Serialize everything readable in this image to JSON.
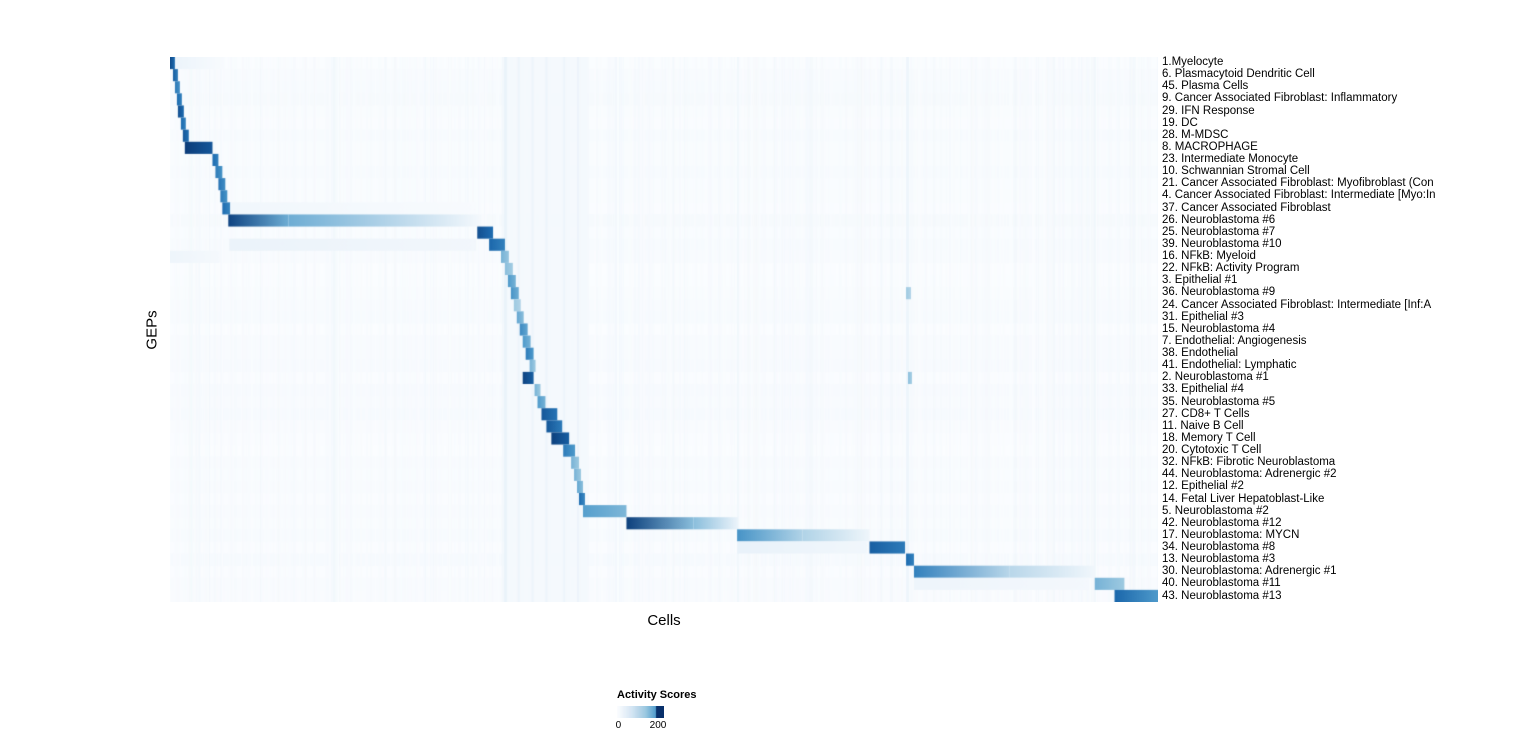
{
  "chart_data": {
    "type": "heatmap",
    "title": "",
    "xlabel": "Cells",
    "ylabel": "GEPs",
    "legend": {
      "title": "Activity Scores",
      "ticks": [
        "0",
        "200"
      ],
      "value_range": [
        0,
        200
      ]
    },
    "colormap": {
      "name": "Blues",
      "stops": [
        [
          0,
          "#fbfdff"
        ],
        [
          0.25,
          "#d6e6f4"
        ],
        [
          0.5,
          "#9ecae1"
        ],
        [
          0.7,
          "#4e9acb"
        ],
        [
          0.85,
          "#1c6bb0"
        ],
        [
          1,
          "#08306b"
        ]
      ]
    },
    "rows": [
      {
        "label": "1.Myelocyte",
        "segments": [
          [
            0.0,
            0.005,
            0.93,
            0.85
          ],
          [
            0.005,
            0.055,
            0.1,
            0.02
          ]
        ]
      },
      {
        "label": "6. Plasmacytoid Dendritic Cell",
        "segments": [
          [
            0.003,
            0.008,
            0.88,
            0.8
          ]
        ]
      },
      {
        "label": "45. Plasma Cells",
        "segments": [
          [
            0.005,
            0.01,
            0.8,
            0.74
          ]
        ]
      },
      {
        "label": "9. Cancer Associated Fibroblast: Inflammatory",
        "segments": [
          [
            0.007,
            0.012,
            0.85,
            0.78
          ]
        ]
      },
      {
        "label": "29. IFN Response",
        "segments": [
          [
            0.008,
            0.014,
            0.92,
            0.85
          ]
        ]
      },
      {
        "label": "19. DC",
        "segments": [
          [
            0.011,
            0.016,
            0.85,
            0.78
          ]
        ]
      },
      {
        "label": "28. M-MDSC",
        "segments": [
          [
            0.013,
            0.019,
            0.9,
            0.84
          ]
        ]
      },
      {
        "label": "8. MACROPHAGE",
        "segments": [
          [
            0.015,
            0.043,
            0.97,
            0.9
          ]
        ]
      },
      {
        "label": "23. Intermediate Monocyte",
        "segments": [
          [
            0.043,
            0.049,
            0.85,
            0.78
          ]
        ]
      },
      {
        "label": "10. Schwannian Stromal Cell",
        "segments": [
          [
            0.046,
            0.053,
            0.8,
            0.72
          ]
        ]
      },
      {
        "label": "21. Cancer Associated Fibroblast: Myofibroblast (Con",
        "segments": [
          [
            0.049,
            0.056,
            0.82,
            0.74
          ]
        ]
      },
      {
        "label": "4. Cancer Associated Fibroblast: Intermediate [Myo:In",
        "segments": [
          [
            0.051,
            0.058,
            0.8,
            0.72
          ]
        ]
      },
      {
        "label": "37. Cancer Associated Fibroblast",
        "segments": [
          [
            0.053,
            0.061,
            0.85,
            0.76
          ],
          [
            0.061,
            0.31,
            0.07,
            0.02
          ]
        ]
      },
      {
        "label": "26. Neuroblastoma #6",
        "segments": [
          [
            0.059,
            0.12,
            0.95,
            0.62
          ],
          [
            0.12,
            0.315,
            0.62,
            0.04
          ]
        ]
      },
      {
        "label": "25. Neuroblastoma #7",
        "segments": [
          [
            0.311,
            0.327,
            0.92,
            0.84
          ]
        ]
      },
      {
        "label": "39. Neuroblastoma #10",
        "segments": [
          [
            0.06,
            0.31,
            0.11,
            0.06
          ],
          [
            0.323,
            0.339,
            0.86,
            0.78
          ]
        ]
      },
      {
        "label": "16. NFkB: Myeloid",
        "segments": [
          [
            0.0,
            0.05,
            0.09,
            0.04
          ],
          [
            0.335,
            0.343,
            0.6,
            0.52
          ]
        ]
      },
      {
        "label": "22. NFkB: Activity Program",
        "segments": [
          [
            0.339,
            0.347,
            0.55,
            0.48
          ]
        ]
      },
      {
        "label": "3. Epithelial #1",
        "segments": [
          [
            0.342,
            0.35,
            0.7,
            0.6
          ]
        ]
      },
      {
        "label": "36. Neuroblastoma #9",
        "segments": [
          [
            0.345,
            0.353,
            0.72,
            0.62
          ],
          [
            0.745,
            0.75,
            0.5,
            0.4
          ]
        ]
      },
      {
        "label": "24. Cancer Associated Fibroblast: Intermediate [Inf:A",
        "segments": [
          [
            0.348,
            0.355,
            0.5,
            0.42
          ]
        ]
      },
      {
        "label": "31. Epithelial #3",
        "segments": [
          [
            0.351,
            0.358,
            0.65,
            0.55
          ]
        ]
      },
      {
        "label": "15. Neuroblastoma #4",
        "segments": [
          [
            0.354,
            0.362,
            0.75,
            0.65
          ]
        ]
      },
      {
        "label": "7. Endothelial: Angiogenesis",
        "segments": [
          [
            0.357,
            0.365,
            0.7,
            0.6
          ]
        ]
      },
      {
        "label": "38. Endothelial",
        "segments": [
          [
            0.36,
            0.368,
            0.8,
            0.7
          ]
        ]
      },
      {
        "label": "41. Endothelial: Lymphatic",
        "segments": [
          [
            0.364,
            0.37,
            0.6,
            0.5
          ]
        ]
      },
      {
        "label": "2. Neuroblastoma #1",
        "segments": [
          [
            0.357,
            0.368,
            0.95,
            0.88
          ],
          [
            0.747,
            0.751,
            0.55,
            0.45
          ]
        ]
      },
      {
        "label": "33. Epithelial #4",
        "segments": [
          [
            0.369,
            0.375,
            0.6,
            0.5
          ]
        ]
      },
      {
        "label": "35. Neuroblastoma #5",
        "segments": [
          [
            0.372,
            0.38,
            0.7,
            0.6
          ]
        ]
      },
      {
        "label": "27. CD8+ T Cells",
        "segments": [
          [
            0.376,
            0.392,
            0.9,
            0.82
          ]
        ]
      },
      {
        "label": "11. Naive B Cell",
        "segments": [
          [
            0.381,
            0.397,
            0.9,
            0.8
          ]
        ]
      },
      {
        "label": "18. Memory T Cell",
        "segments": [
          [
            0.386,
            0.404,
            0.96,
            0.88
          ]
        ]
      },
      {
        "label": "20. Cytotoxic T Cell",
        "segments": [
          [
            0.398,
            0.41,
            0.8,
            0.7
          ]
        ]
      },
      {
        "label": "32. NFkB: Fibrotic Neuroblastoma",
        "segments": [
          [
            0.406,
            0.414,
            0.6,
            0.5
          ]
        ]
      },
      {
        "label": "44. Neuroblastoma: Adrenergic #2",
        "segments": [
          [
            0.409,
            0.416,
            0.6,
            0.5
          ]
        ]
      },
      {
        "label": "12. Epithelial #2",
        "segments": [
          [
            0.412,
            0.418,
            0.65,
            0.55
          ]
        ]
      },
      {
        "label": "14. Fetal Liver Hepatoblast-Like",
        "segments": [
          [
            0.414,
            0.42,
            0.85,
            0.75
          ]
        ]
      },
      {
        "label": "5. Neuroblastoma #2",
        "segments": [
          [
            0.418,
            0.462,
            0.68,
            0.58
          ]
        ]
      },
      {
        "label": "42. Neuroblastoma #12",
        "segments": [
          [
            0.462,
            0.53,
            0.96,
            0.55
          ],
          [
            0.53,
            0.575,
            0.55,
            0.1
          ]
        ]
      },
      {
        "label": "17. Neuroblastoma: MYCN",
        "segments": [
          [
            0.574,
            0.64,
            0.72,
            0.42
          ],
          [
            0.64,
            0.708,
            0.42,
            0.08
          ]
        ]
      },
      {
        "label": "34. Neuroblastoma #8",
        "segments": [
          [
            0.574,
            0.706,
            0.12,
            0.07
          ],
          [
            0.708,
            0.744,
            0.88,
            0.8
          ]
        ]
      },
      {
        "label": "13. Neuroblastoma #3",
        "segments": [
          [
            0.745,
            0.753,
            0.85,
            0.78
          ]
        ]
      },
      {
        "label": "30. Neuroblastoma: Adrenergic #1",
        "segments": [
          [
            0.753,
            0.85,
            0.78,
            0.38
          ],
          [
            0.85,
            0.936,
            0.38,
            0.07
          ]
        ]
      },
      {
        "label": "40. Neuroblastoma #11",
        "segments": [
          [
            0.753,
            0.93,
            0.09,
            0.05
          ],
          [
            0.936,
            0.966,
            0.6,
            0.5
          ]
        ]
      },
      {
        "label": "43. Neuroblastoma #13",
        "segments": [
          [
            0.956,
            1.0,
            0.86,
            0.7
          ]
        ]
      }
    ],
    "column_streaks": [
      {
        "x": 0.339,
        "w": 0.085,
        "v": 0.05
      },
      {
        "x": 0.338,
        "w": 0.003,
        "v": 0.12
      },
      {
        "x": 0.352,
        "w": 0.002,
        "v": 0.1
      },
      {
        "x": 0.366,
        "w": 0.002,
        "v": 0.1
      },
      {
        "x": 0.38,
        "w": 0.002,
        "v": 0.1
      },
      {
        "x": 0.398,
        "w": 0.002,
        "v": 0.1
      },
      {
        "x": 0.412,
        "w": 0.002,
        "v": 0.1
      },
      {
        "x": 0.574,
        "w": 0.002,
        "v": 0.08
      },
      {
        "x": 0.745,
        "w": 0.003,
        "v": 0.1
      },
      {
        "x": 0.935,
        "w": 0.002,
        "v": 0.08
      }
    ]
  }
}
